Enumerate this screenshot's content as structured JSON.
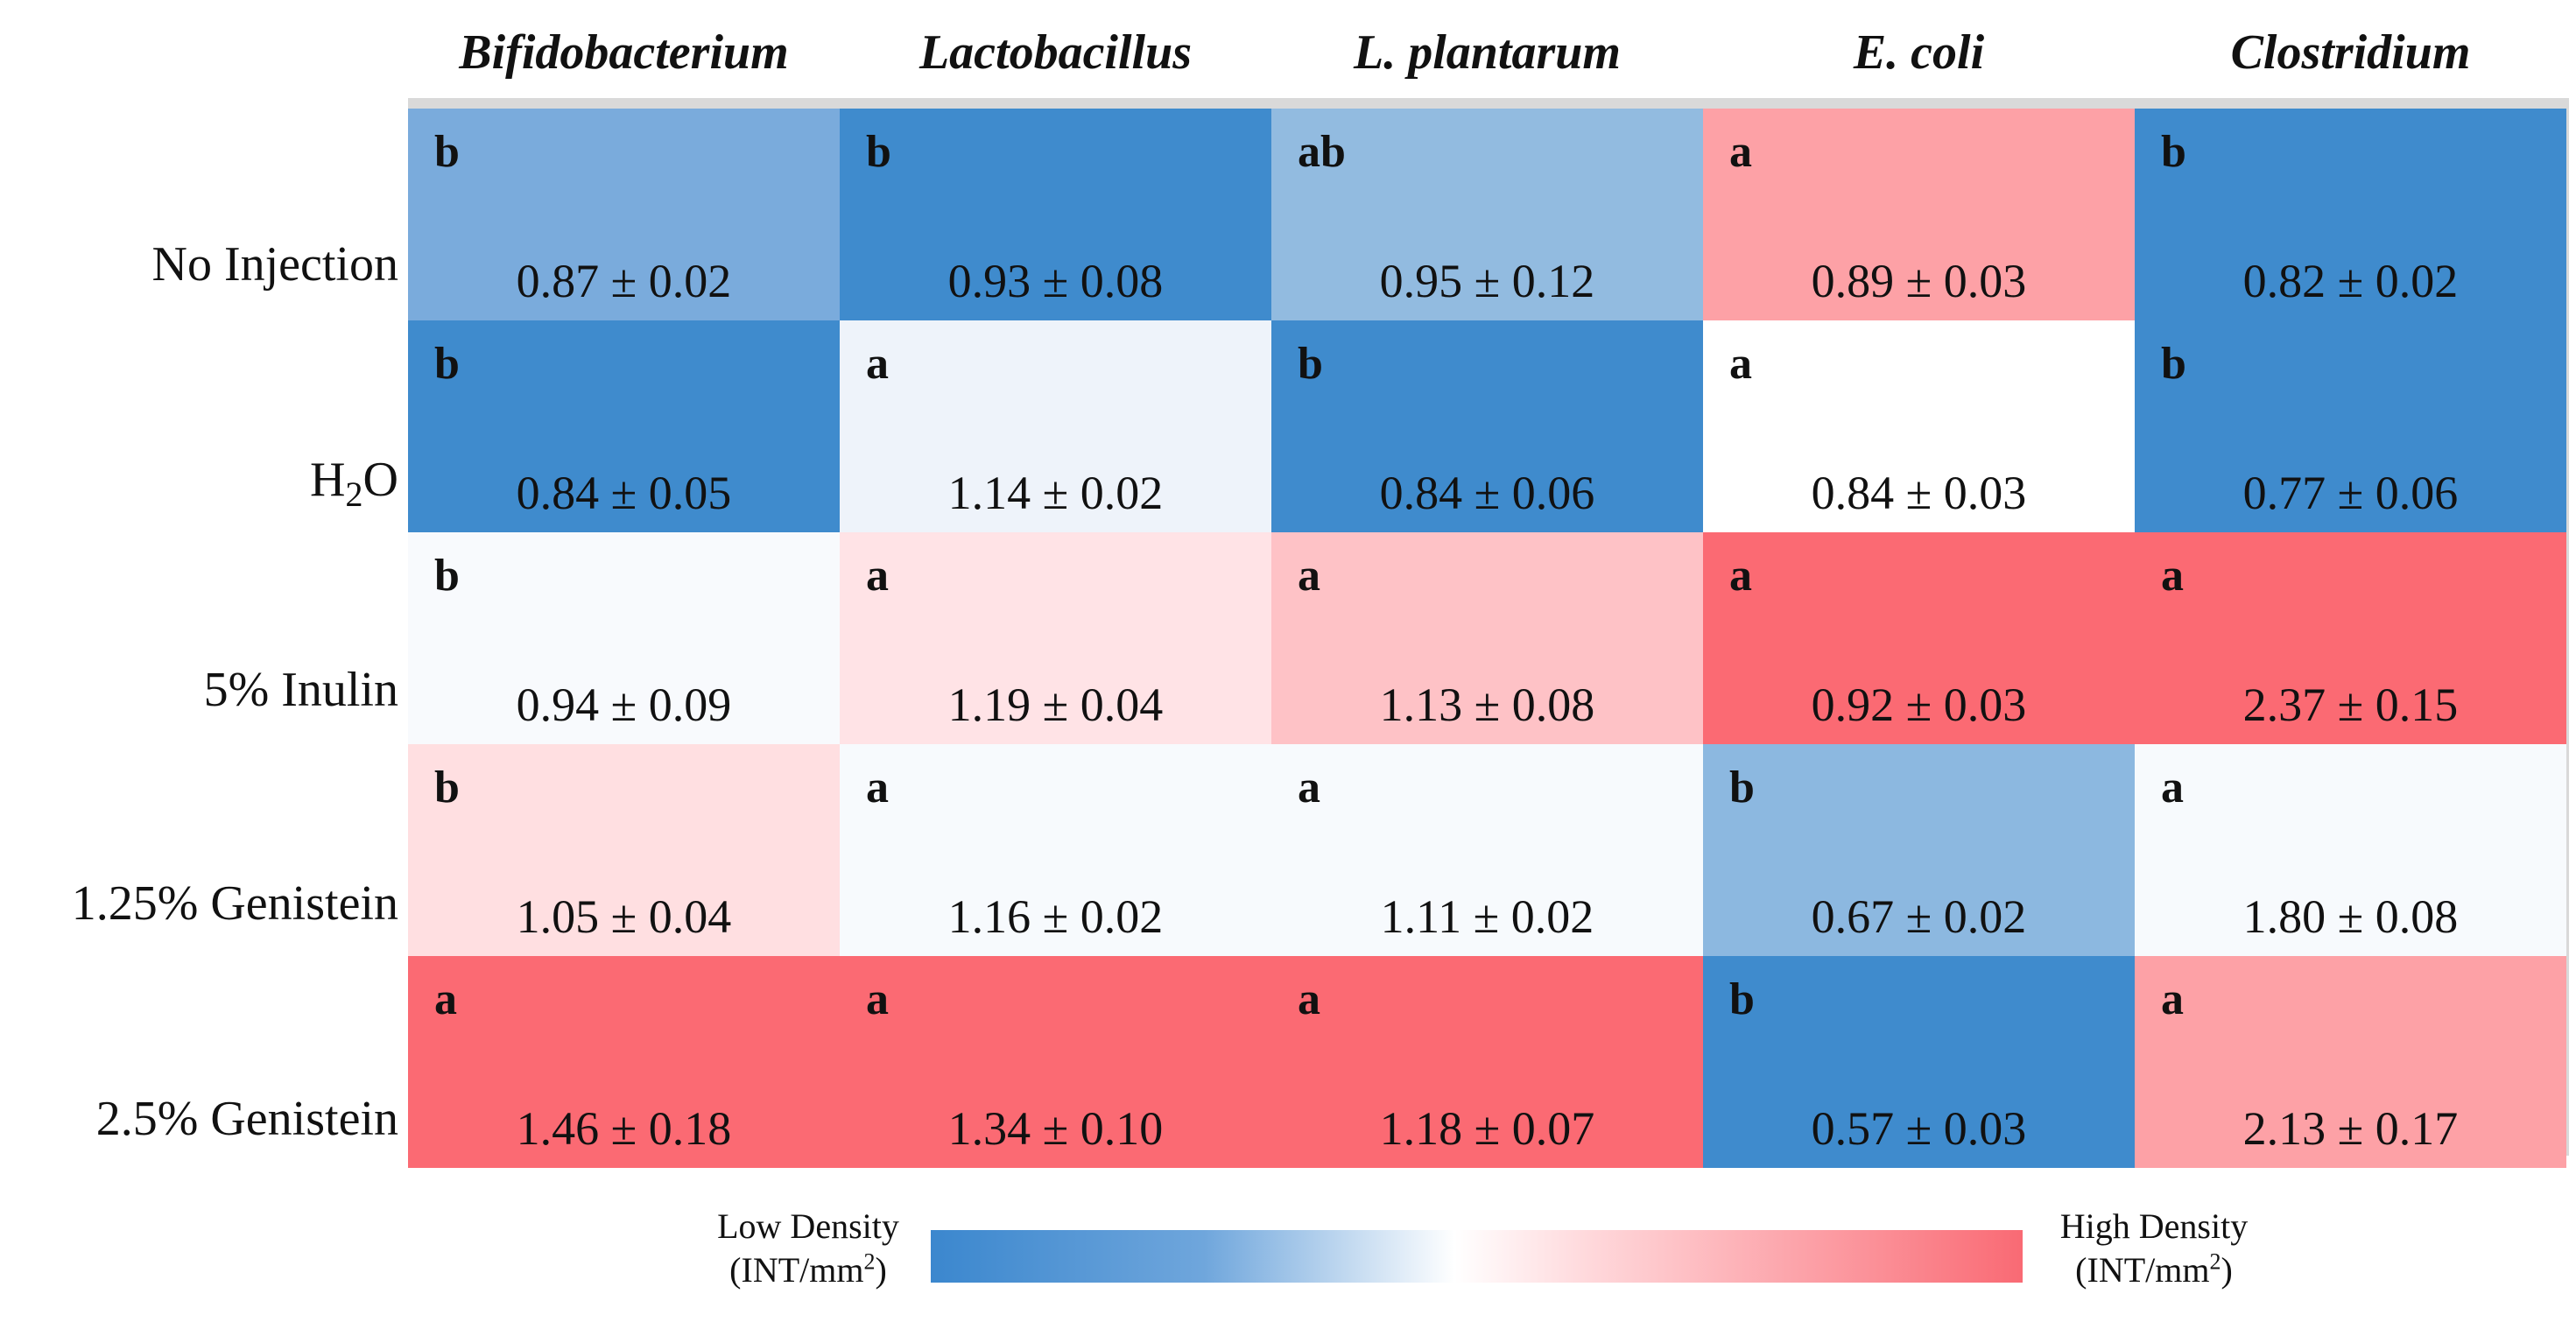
{
  "chart_data": {
    "type": "heatmap",
    "columns": [
      "Bifidobacterium",
      "Lactobacillus",
      "L. plantarum",
      "E. coli",
      "Clostridium"
    ],
    "rows": [
      {
        "label": "No Injection",
        "cells": [
          {
            "letter": "b",
            "value": 0.87,
            "sd": 0.02,
            "text": "0.87 ± 0.02",
            "color": "#7aabdc"
          },
          {
            "letter": "b",
            "value": 0.93,
            "sd": 0.08,
            "text": "0.93 ± 0.08",
            "color": "#3f8bcd"
          },
          {
            "letter": "ab",
            "value": 0.95,
            "sd": 0.12,
            "text": "0.95 ± 0.12",
            "color": "#92bbe0"
          },
          {
            "letter": "a",
            "value": 0.89,
            "sd": 0.03,
            "text": "0.89 ± 0.03",
            "color": "#fda1a6"
          },
          {
            "letter": "b",
            "value": 0.82,
            "sd": 0.02,
            "text": "0.82 ± 0.02",
            "color": "#3f8bcd"
          }
        ]
      },
      {
        "label": "H2O",
        "cells": [
          {
            "letter": "b",
            "value": 0.84,
            "sd": 0.05,
            "text": "0.84 ± 0.05",
            "color": "#3f8bcd"
          },
          {
            "letter": "a",
            "value": 1.14,
            "sd": 0.02,
            "text": "1.14 ± 0.02",
            "color": "#eef3fa"
          },
          {
            "letter": "b",
            "value": 0.84,
            "sd": 0.06,
            "text": "0.84 ± 0.06",
            "color": "#3f8bcd"
          },
          {
            "letter": "a",
            "value": 0.84,
            "sd": 0.03,
            "text": "0.84 ± 0.03",
            "color": "#ffffff"
          },
          {
            "letter": "b",
            "value": 0.77,
            "sd": 0.06,
            "text": "0.77 ± 0.06",
            "color": "#3f8bcd"
          }
        ]
      },
      {
        "label": "5% Inulin",
        "cells": [
          {
            "letter": "b",
            "value": 0.94,
            "sd": 0.09,
            "text": "0.94 ± 0.09",
            "color": "#f8fafd"
          },
          {
            "letter": "a",
            "value": 1.19,
            "sd": 0.04,
            "text": "1.19 ± 0.04",
            "color": "#ffe3e6"
          },
          {
            "letter": "a",
            "value": 1.13,
            "sd": 0.08,
            "text": "1.13 ± 0.08",
            "color": "#fec2c6"
          },
          {
            "letter": "a",
            "value": 0.92,
            "sd": 0.03,
            "text": "0.92 ± 0.03",
            "color": "#fb6a73"
          },
          {
            "letter": "a",
            "value": 2.37,
            "sd": 0.15,
            "text": "2.37 ± 0.15",
            "color": "#fb6a73"
          }
        ]
      },
      {
        "label": "1.25% Genistein",
        "cells": [
          {
            "letter": "b",
            "value": 1.05,
            "sd": 0.04,
            "text": "1.05 ± 0.04",
            "color": "#ffdfe1"
          },
          {
            "letter": "a",
            "value": 1.16,
            "sd": 0.02,
            "text": "1.16 ± 0.02",
            "color": "#f7fafd"
          },
          {
            "letter": "a",
            "value": 1.11,
            "sd": 0.02,
            "text": "1.11 ± 0.02",
            "color": "#f7fafd"
          },
          {
            "letter": "b",
            "value": 0.67,
            "sd": 0.02,
            "text": "0.67 ± 0.02",
            "color": "#8cb8e0"
          },
          {
            "letter": "a",
            "value": 1.8,
            "sd": 0.08,
            "text": "1.80 ± 0.08",
            "color": "#f7fafd"
          }
        ]
      },
      {
        "label": "2.5% Genistein",
        "cells": [
          {
            "letter": "a",
            "value": 1.46,
            "sd": 0.18,
            "text": "1.46 ± 0.18",
            "color": "#fb6a73"
          },
          {
            "letter": "a",
            "value": 1.34,
            "sd": 0.1,
            "text": "1.34 ± 0.10",
            "color": "#fb6a73"
          },
          {
            "letter": "a",
            "value": 1.18,
            "sd": 0.07,
            "text": "1.18 ± 0.07",
            "color": "#fb6a73"
          },
          {
            "letter": "b",
            "value": 0.57,
            "sd": 0.03,
            "text": "0.57 ± 0.03",
            "color": "#3f8bcd"
          },
          {
            "letter": "a",
            "value": 2.13,
            "sd": 0.17,
            "text": "2.13 ± 0.17",
            "color": "#fda1a6"
          }
        ]
      }
    ],
    "legend": {
      "low_label": "Low Density",
      "high_label": "High Density",
      "unit_prefix": "(INT/mm",
      "unit_exponent": "2",
      "unit_suffix": ")",
      "low_color": "#3b87ce",
      "high_color": "#f96a74"
    }
  }
}
